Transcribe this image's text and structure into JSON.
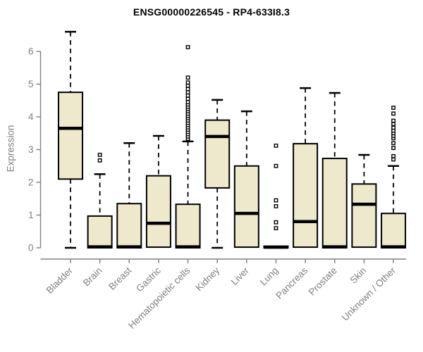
{
  "chart_data": {
    "type": "boxplot",
    "title": "ENSG00000226545 - RP4-633I8.3",
    "xlabel": "",
    "ylabel": "Expression",
    "ylim": [
      0,
      6.8
    ],
    "yticks": [
      0,
      1,
      2,
      3,
      4,
      5,
      6
    ],
    "grid": false,
    "legend": false,
    "categories": [
      "Bladder",
      "Brain",
      "Breast",
      "Gastric",
      "Hematopoietic cells",
      "Kidney",
      "Liver",
      "Lung",
      "Pancreas",
      "Prostate",
      "Skin",
      "Unknown / Other"
    ],
    "series": [
      {
        "name": "Bladder",
        "whisker_low": 0,
        "q1": 2.1,
        "median": 3.65,
        "q3": 4.75,
        "whisker_high": 6.6,
        "outliers": []
      },
      {
        "name": "Brain",
        "whisker_low": 0,
        "q1": 0,
        "median": 0.03,
        "q3": 0.97,
        "whisker_high": 2.25,
        "outliers": [
          2.67,
          2.84
        ]
      },
      {
        "name": "Breast",
        "whisker_low": 0,
        "q1": 0,
        "median": 0.03,
        "q3": 1.35,
        "whisker_high": 3.2,
        "outliers": []
      },
      {
        "name": "Gastric",
        "whisker_low": 0,
        "q1": 0.02,
        "median": 0.75,
        "q3": 2.2,
        "whisker_high": 3.42,
        "outliers": []
      },
      {
        "name": "Hematopoietic cells",
        "whisker_low": 0,
        "q1": 0,
        "median": 0.03,
        "q3": 1.33,
        "whisker_high": 3.25,
        "outliers": [
          3.33,
          3.4,
          3.47,
          3.54,
          3.61,
          3.68,
          3.75,
          3.82,
          3.89,
          3.96,
          4.03,
          4.1,
          4.17,
          4.24,
          4.31,
          4.38,
          4.45,
          4.55,
          4.65,
          4.75,
          4.85,
          4.95,
          5.05,
          5.2,
          6.13
        ]
      },
      {
        "name": "Kidney",
        "whisker_low": 0,
        "q1": 1.83,
        "median": 3.4,
        "q3": 3.9,
        "whisker_high": 4.52,
        "outliers": []
      },
      {
        "name": "Liver",
        "whisker_low": 0,
        "q1": 0.02,
        "median": 1.05,
        "q3": 2.5,
        "whisker_high": 4.17,
        "outliers": []
      },
      {
        "name": "Lung",
        "whisker_low": 0,
        "q1": 0,
        "median": 0.02,
        "q3": 0.05,
        "whisker_high": 0.07,
        "outliers": [
          0.6,
          0.78,
          1.27,
          1.45,
          2.5,
          3.12
        ]
      },
      {
        "name": "Pancreas",
        "whisker_low": 0,
        "q1": 0.02,
        "median": 0.8,
        "q3": 3.18,
        "whisker_high": 4.88,
        "outliers": []
      },
      {
        "name": "Prostate",
        "whisker_low": 0,
        "q1": 0,
        "median": 0.03,
        "q3": 2.73,
        "whisker_high": 4.73,
        "outliers": []
      },
      {
        "name": "Skin",
        "whisker_low": 0,
        "q1": 0.02,
        "median": 1.33,
        "q3": 1.95,
        "whisker_high": 2.84,
        "outliers": []
      },
      {
        "name": "Unknown / Other",
        "whisker_low": 0,
        "q1": 0,
        "median": 0.03,
        "q3": 1.05,
        "whisker_high": 2.5,
        "outliers": [
          2.7,
          2.8,
          3.05,
          3.2,
          3.35,
          3.42,
          3.5,
          3.58,
          3.67,
          3.78,
          3.88,
          4.1,
          4.28
        ]
      }
    ],
    "style": {
      "box_fill": "#EEE8CD",
      "box_stroke": "#000000",
      "median_color": "#000000",
      "whisker_color": "#000000",
      "whisker_style": "dashed",
      "outlier_marker": "open-square",
      "axis_color": "#808080",
      "tick_label_color": "#808080",
      "title_color": "#000000",
      "background": "#FFFFFF"
    }
  }
}
